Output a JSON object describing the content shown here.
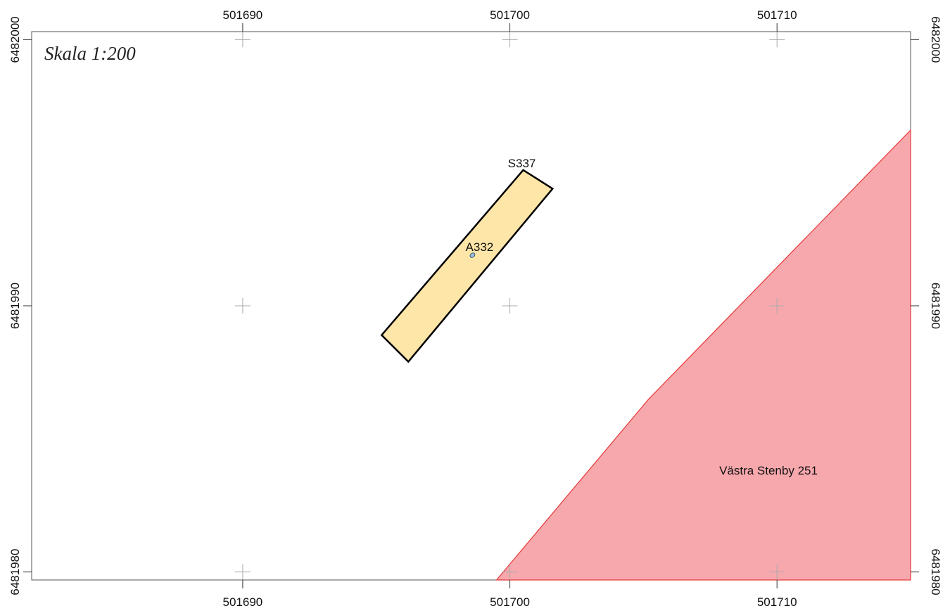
{
  "map": {
    "scale_label": "Skala 1:200",
    "x_ticks": [
      {
        "value": 501690,
        "label": "501690"
      },
      {
        "value": 501700,
        "label": "501700"
      },
      {
        "value": 501710,
        "label": "501710"
      }
    ],
    "y_ticks": [
      {
        "value": 6482000,
        "label": "6482000"
      },
      {
        "value": 6481990,
        "label": "6481990"
      },
      {
        "value": 6481980,
        "label": "6481980"
      }
    ],
    "extent": {
      "x_min": 501682.1,
      "x_max": 501715.0,
      "y_min": 6481979.7,
      "y_max": 6482000.3
    },
    "features": {
      "trench": {
        "label": "S337",
        "fill": "#fde6a8",
        "stroke": "#000000",
        "coords": [
          [
            501700.5,
            6481995.1
          ],
          [
            501701.6,
            6481994.4
          ],
          [
            501696.2,
            6481987.9
          ],
          [
            501695.2,
            6481988.9
          ]
        ]
      },
      "find": {
        "label": "A332",
        "fill": "#9fc3de",
        "stroke": "#3a5670",
        "coords": [
          [
            501698.6,
            6481991.9
          ]
        ]
      },
      "property": {
        "label": "Västra Stenby 251",
        "fill": "#f7a8ad",
        "stroke": "#e53838",
        "coords": [
          [
            501699.5,
            6481979.7
          ],
          [
            501705.2,
            6481986.5
          ],
          [
            501715.0,
            6481996.6
          ],
          [
            501715.0,
            6481979.7
          ]
        ]
      }
    },
    "colors": {
      "frame": "#555555",
      "grid_cross": "#aaaaaa",
      "tick": "#333333"
    }
  }
}
